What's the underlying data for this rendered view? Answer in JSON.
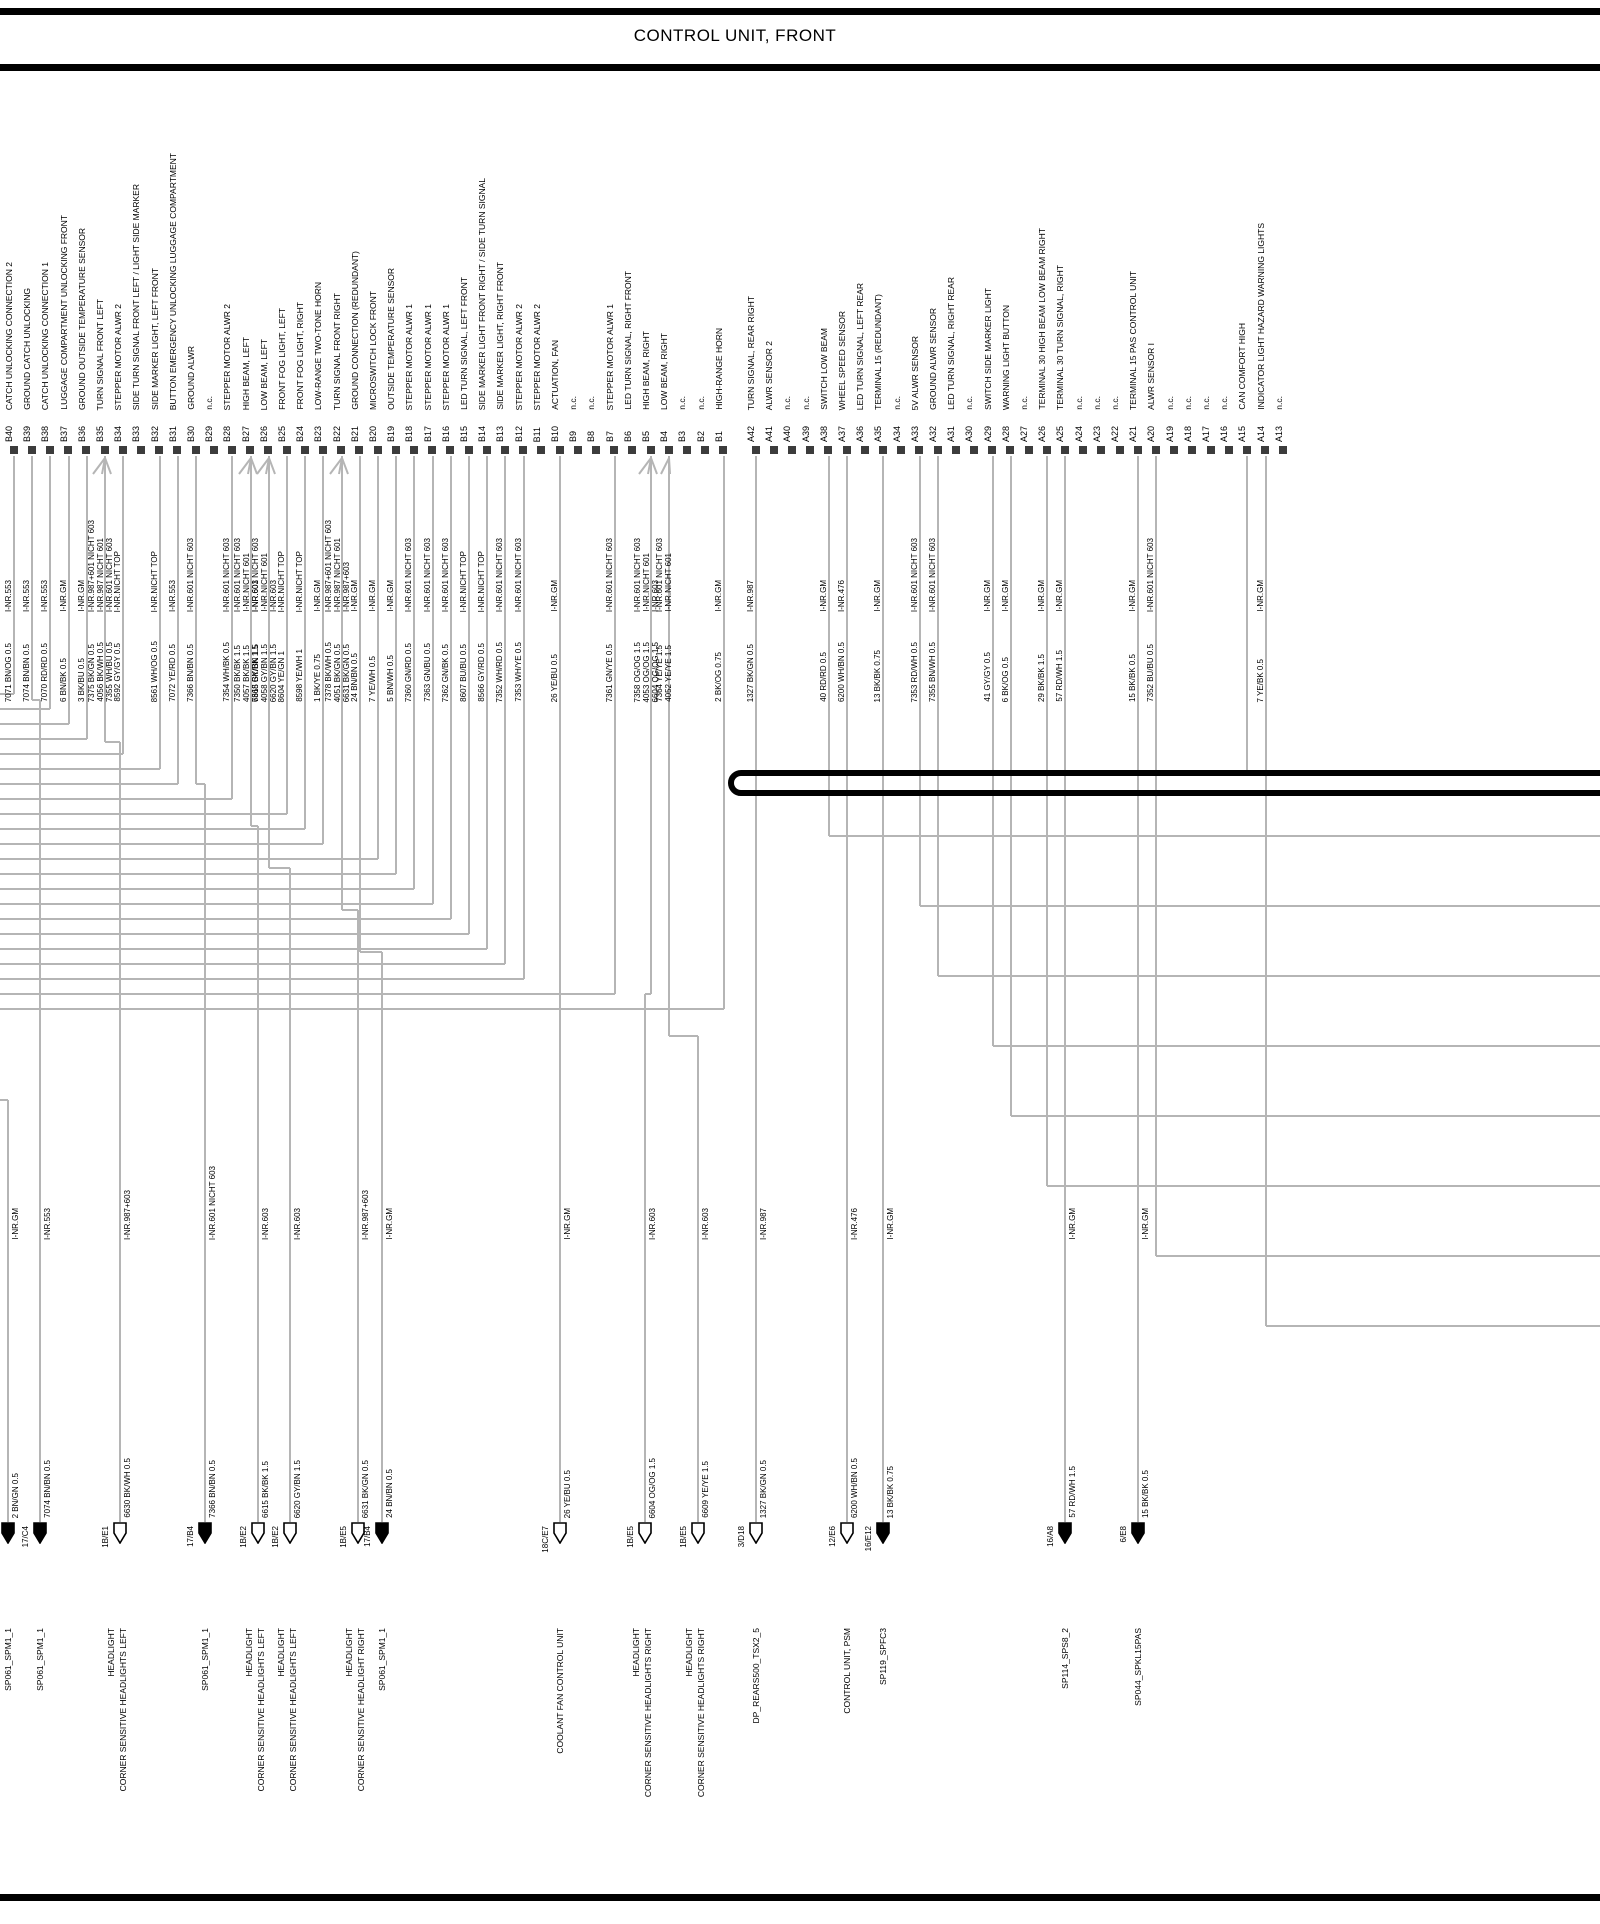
{
  "title": "CONTROL UNIT, FRONT",
  "colors": {
    "wire_gray": "#b5b5b5",
    "bar_black": "#000000",
    "pin_contact": "#3c3c3c"
  },
  "pins": [
    {
      "id": "B40",
      "fn": "CATCH UNLOCKING CONNECTION 2",
      "wires": [
        {
          "code": "7071 BN/OG 0.5",
          "inr": "I-NR.553"
        }
      ],
      "dest": "left"
    },
    {
      "id": "B39",
      "fn": "GROUND CATCH UNLOCKING",
      "wires": [
        {
          "code": "7074 BN/BN 0.5",
          "inr": "I-NR.553"
        }
      ],
      "dest": "sp:1"
    },
    {
      "id": "B38",
      "fn": "CATCH UNLOCKING CONNECTION 1",
      "wires": [
        {
          "code": "7070 RD/RD 0.5",
          "inr": "I-NR.553"
        }
      ],
      "dest": "left"
    },
    {
      "id": "B37",
      "fn": "LUGGAGE COMPARTMENT UNLOCKING FRONT",
      "wires": [
        {
          "code": "6 BN/BK 0.5",
          "inr": "I-NR.GM"
        }
      ],
      "dest": "left"
    },
    {
      "id": "B36",
      "fn": "GROUND OUTSIDE TEMPERATURE SENSOR",
      "wires": [
        {
          "code": "3 BK/BU 0.5",
          "inr": "I-NR.GM"
        }
      ],
      "dest": "left"
    },
    {
      "id": "B35",
      "fn": "TURN SIGNAL FRONT LEFT",
      "wires": [
        {
          "code": "7375 BK/GN 0.5",
          "inr": "I-NR.987+601 NICHT 603"
        },
        {
          "code": "4056 BK/WH 0.5",
          "inr": "I-NR.987 NICHT 601"
        },
        {
          "code": "7355 WH/BU 0.5",
          "inr": "I-NR.601 NICHT 603"
        }
      ],
      "dest": "sp:2"
    },
    {
      "id": "B34",
      "fn": "STEPPER MOTOR  ALWR 2",
      "wires": [
        {
          "code": "8592 GY/GY 0.5",
          "inr": "I-NR.NICHT TOP"
        }
      ],
      "dest": "left"
    },
    {
      "id": "B33",
      "fn": "SIDE TURN SIGNAL FRONT LEFT / LIGHT SIDE MARKER",
      "wires": []
    },
    {
      "id": "B32",
      "fn": "SIDE MARKER LIGHT, LEFT FRONT",
      "wires": [
        {
          "code": "8561 WH/OG 0.5",
          "inr": "I-NR.NICHT TOP"
        }
      ],
      "dest": "left"
    },
    {
      "id": "B31",
      "fn": "BUTTON  EMERGENCY UNLOCKING  LUGGAGE COMPARTMENT",
      "wires": [
        {
          "code": "7072 YE/RD 0.5",
          "inr": "I-NR.553"
        }
      ],
      "dest": "left"
    },
    {
      "id": "B30",
      "fn": "GROUND  ALWR",
      "wires": [
        {
          "code": "7366 BN/BN 0.5",
          "inr": "I-NR.601 NICHT 603"
        }
      ],
      "dest": "sp:3"
    },
    {
      "id": "B29",
      "fn": "n.c.",
      "wires": []
    },
    {
      "id": "B28",
      "fn": "STEPPER MOTOR  ALWR 2",
      "wires": [
        {
          "code": "7354 WH/BK 0.5",
          "inr": "I-NR.601 NICHT 603"
        }
      ],
      "dest": "left"
    },
    {
      "id": "B27",
      "fn": "HIGH BEAM, LEFT",
      "wires": [
        {
          "code": "7350 BK/BK 1.5",
          "inr": "I-NR.601 NICHT 603"
        },
        {
          "code": "4057 BK/BK 1.5",
          "inr": "I-NR.NICHT 601"
        },
        {
          "code": "6615 BK/BK 1.5",
          "inr": "I-NR.603"
        }
      ],
      "dest": "sp:4"
    },
    {
      "id": "B26",
      "fn": "LOW BEAM, LEFT",
      "wires": [
        {
          "code": "7368 GY/BN 1.5",
          "inr": "I-NR.601 NICHT 603"
        },
        {
          "code": "4058 GY/BN 1.5",
          "inr": "I-NR.NICHT 601"
        },
        {
          "code": "6620 GY/BN 1.5",
          "inr": "I-NR.603"
        }
      ],
      "dest": "sp:5"
    },
    {
      "id": "B25",
      "fn": "FRONT FOG LIGHT, LEFT",
      "wires": [
        {
          "code": "8604 YE/GN 1",
          "inr": "I-NR.NICHT TOP"
        }
      ],
      "dest": "left"
    },
    {
      "id": "B24",
      "fn": "FRONT FOG LIGHT, RIGHT",
      "wires": [
        {
          "code": "8598 YE/WH 1",
          "inr": "I-NR.NICHT TOP"
        }
      ],
      "dest": "left"
    },
    {
      "id": "B23",
      "fn": "LOW-RANGE  TWO-TONE  HORN",
      "wires": [
        {
          "code": "1 BK/YE 0.75",
          "inr": "I-NR.GM"
        }
      ],
      "dest": "left"
    },
    {
      "id": "B22",
      "fn": "TURN SIGNAL  FRONT RIGHT",
      "wires": [
        {
          "code": "7378 BK/WH 0.5",
          "inr": "I-NR.987+601 NICHT 603"
        },
        {
          "code": "4051 BK/GN 0.5",
          "inr": "I-NR.987 NICHT 601"
        },
        {
          "code": "6631 BK/GN 0.5",
          "inr": "I-NR.987+603"
        }
      ],
      "dest": "sp:6"
    },
    {
      "id": "B21",
      "fn": "GROUND CONNECTION  (REDUNDANT)",
      "wires": [
        {
          "code": "24 BN/BN 0.5",
          "inr": "I-NR.GM"
        }
      ],
      "dest": "sp:7"
    },
    {
      "id": "B20",
      "fn": "MICROSWITCH    LOCK    FRONT",
      "wires": [
        {
          "code": "7 YE/WH 0.5",
          "inr": "I-NR.GM"
        }
      ],
      "dest": "left"
    },
    {
      "id": "B19",
      "fn": "OUTSIDE TEMPERATURE SENSOR",
      "wires": [
        {
          "code": "5 BN/WH 0.5",
          "inr": "I-NR.GM"
        }
      ],
      "dest": "left"
    },
    {
      "id": "B18",
      "fn": "STEPPER MOTOR   ALWR 1",
      "wires": [
        {
          "code": "7360 GN/RD 0.5",
          "inr": "I-NR.601 NICHT 603"
        }
      ],
      "dest": "left"
    },
    {
      "id": "B17",
      "fn": "STEPPER MOTOR   ALWR 1",
      "wires": [
        {
          "code": "7363 GN/BU 0.5",
          "inr": "I-NR.601 NICHT 603"
        }
      ],
      "dest": "left"
    },
    {
      "id": "B16",
      "fn": "STEPPER MOTOR  ALWR 1",
      "wires": [
        {
          "code": "7362 GN/BK 0.5",
          "inr": "I-NR.601 NICHT 603"
        }
      ],
      "dest": "left"
    },
    {
      "id": "B15",
      "fn": "LED TURN SIGNAL, LEFT   FRONT",
      "wires": [
        {
          "code": "8607 BU/BU 0.5",
          "inr": "I-NR.NICHT TOP"
        }
      ],
      "dest": "left"
    },
    {
      "id": "B14",
      "fn": "SIDE MARKER LIGHT  FRONT RIGHT / SIDE TURN SIGNAL",
      "wires": [
        {
          "code": "8566 GY/RD 0.5",
          "inr": "I-NR.NICHT TOP"
        }
      ],
      "dest": "left"
    },
    {
      "id": "B13",
      "fn": "SIDE MARKER LIGHT, RIGHT FRONT",
      "wires": [
        {
          "code": "7352 WH/RD 0.5",
          "inr": "I-NR.601 NICHT 603"
        }
      ],
      "dest": "left"
    },
    {
      "id": "B12",
      "fn": "STEPPER MOTOR  ALWR 2",
      "wires": [
        {
          "code": "7353 WH/YE 0.5",
          "inr": "I-NR.601 NICHT 603"
        }
      ],
      "dest": "left"
    },
    {
      "id": "B11",
      "fn": "STEPPER MOTOR  ALWR 2",
      "wires": []
    },
    {
      "id": "B10",
      "fn": "ACTUATION, FAN",
      "wires": [
        {
          "code": "26 YE/BU 0.5",
          "inr": "I-NR.GM"
        }
      ],
      "dest": "sp:8"
    },
    {
      "id": "B9",
      "fn": "n.c.",
      "wires": []
    },
    {
      "id": "B8",
      "fn": "n.c.",
      "wires": []
    },
    {
      "id": "B7",
      "fn": "STEPPER MOTOR  ALWR 1",
      "wires": [
        {
          "code": "7361 GN/YE 0.5",
          "inr": "I-NR.601 NICHT 603"
        }
      ],
      "dest": "left"
    },
    {
      "id": "B6",
      "fn": "LED TURN SIGNAL, RIGHT  FRONT",
      "wires": []
    },
    {
      "id": "B5",
      "fn": "HIGH BEAM, RIGHT",
      "wires": [
        {
          "code": "7358 OG/OG 1.5",
          "inr": "I-NR.601 NICHT 603"
        },
        {
          "code": "4053 OG/OG 1.5",
          "inr": "I-NR.NICHT 601"
        },
        {
          "code": "6604 OG/OG 1.5",
          "inr": "I-NR.603"
        }
      ],
      "dest": "sp:9"
    },
    {
      "id": "B4",
      "fn": "LOW BEAM, RIGHT",
      "wires": [
        {
          "code": "7364 YE/YE 1.5",
          "inr": "I-NR.601 NICHT 603"
        },
        {
          "code": "4052 YE/YE 1.5",
          "inr": "I-NR.NICHT 601"
        }
      ],
      "dest": "sp:10"
    },
    {
      "id": "B3",
      "fn": "n.c.",
      "wires": []
    },
    {
      "id": "B2",
      "fn": "n.c.",
      "wires": []
    },
    {
      "id": "B1",
      "fn": "HIGH-RANGE HORN",
      "wires": [
        {
          "code": "2 BK/OG 0.75",
          "inr": "I-NR.GM"
        }
      ],
      "dest": "left"
    },
    {
      "id": "A42",
      "fn": "TURN SIGNAL, REAR RIGHT",
      "wires": [
        {
          "code": "1327 BK/GN 0.5",
          "inr": "I-NR.987"
        }
      ],
      "dest": "sp:11"
    },
    {
      "id": "A41",
      "fn": "ALWR SENSOR 2",
      "wires": []
    },
    {
      "id": "A40",
      "fn": "n.c.",
      "wires": []
    },
    {
      "id": "A39",
      "fn": "n.c.",
      "wires": []
    },
    {
      "id": "A38",
      "fn": "SWITCH LOW BEAM",
      "wires": [
        {
          "code": "40 RD/RD 0.5",
          "inr": "I-NR.GM"
        }
      ],
      "dest": "right"
    },
    {
      "id": "A37",
      "fn": "WHEEL SPEED SENSOR",
      "wires": [
        {
          "code": "6200 WH/BN 0.5",
          "inr": "I-NR.476"
        }
      ],
      "dest": "sp:12"
    },
    {
      "id": "A36",
      "fn": "LED TURN SIGNAL, LEFT REAR",
      "wires": []
    },
    {
      "id": "A35",
      "fn": "TERMINAL 15 (REDUNDANT)",
      "wires": [
        {
          "code": "13 BK/BK 0.75",
          "inr": "I-NR.GM"
        }
      ],
      "dest": "sp:13"
    },
    {
      "id": "A34",
      "fn": "n.c.",
      "wires": []
    },
    {
      "id": "A33",
      "fn": "5V   ALWR SENSOR",
      "wires": [
        {
          "code": "7353 RD/WH 0.5",
          "inr": "I-NR.601 NICHT 603"
        }
      ],
      "dest": "right"
    },
    {
      "id": "A32",
      "fn": "GROUND ALWR SENSOR",
      "wires": [
        {
          "code": "7355 BN/WH 0.5",
          "inr": "I-NR.601 NICHT 603"
        }
      ],
      "dest": "right"
    },
    {
      "id": "A31",
      "fn": "LED TURN SIGNAL, RIGHT REAR",
      "wires": []
    },
    {
      "id": "A30",
      "fn": "n.c.",
      "wires": []
    },
    {
      "id": "A29",
      "fn": "SWITCH  SIDE MARKER  LIGHT",
      "wires": [
        {
          "code": "41 GY/GY 0.5",
          "inr": "I-NR.GM"
        }
      ],
      "dest": "right"
    },
    {
      "id": "A28",
      "fn": "WARNING LIGHT BUTTON",
      "wires": [
        {
          "code": "6 BK/OG 0.5",
          "inr": "I-NR.GM"
        }
      ],
      "dest": "right"
    },
    {
      "id": "A27",
      "fn": "n.c.",
      "wires": []
    },
    {
      "id": "A26",
      "fn": "TERMINAL 30 HIGH BEAM  LOW BEAM  RIGHT",
      "wires": [
        {
          "code": "29 BK/BK 1.5",
          "inr": "I-NR.GM"
        }
      ],
      "dest": "right"
    },
    {
      "id": "A25",
      "fn": "TERMINAL 30   TURN SIGNAL, RIGHT",
      "wires": [
        {
          "code": "57 RD/WH 1.5",
          "inr": "I-NR.GM"
        }
      ],
      "dest": "sp:14"
    },
    {
      "id": "A24",
      "fn": "n.c.",
      "wires": []
    },
    {
      "id": "A23",
      "fn": "n.c.",
      "wires": []
    },
    {
      "id": "A22",
      "fn": "n.c.",
      "wires": []
    },
    {
      "id": "A21",
      "fn": "TERMINAL 15   PAS CONTROL UNIT",
      "wires": [
        {
          "code": "15 BK/BK 0.5",
          "inr": "I-NR.GM"
        }
      ],
      "dest": "sp:15"
    },
    {
      "id": "A20",
      "fn": "ALWR SENSOR    I",
      "wires": [
        {
          "code": "7352 BU/BU 0.5",
          "inr": "I-NR.601 NICHT 603"
        }
      ],
      "dest": "right"
    },
    {
      "id": "A19",
      "fn": "n.c.",
      "wires": []
    },
    {
      "id": "A18",
      "fn": "n.c.",
      "wires": []
    },
    {
      "id": "A17",
      "fn": "n.c.",
      "wires": []
    },
    {
      "id": "A16",
      "fn": "n.c.",
      "wires": []
    },
    {
      "id": "A15",
      "fn": "CAN COMFORT HIGH",
      "wires": [],
      "dest": "bus"
    },
    {
      "id": "A14",
      "fn": "INDICATOR LIGHT HAZARD WARNING LIGHTS",
      "wires": [
        {
          "code": "7 YE/BK 0.5",
          "inr": "I-NR.GM"
        }
      ],
      "dest": "right"
    },
    {
      "id": "A13",
      "fn": "n.c.",
      "wires": []
    }
  ],
  "connectors": [
    {
      "name": "SP061_SPM1_1",
      "ref": "17/D4",
      "code": "2 BN/GN 0.5",
      "inr": "I-NR.GM",
      "style": "filled"
    },
    {
      "name": "SP061_SPM1_1",
      "ref": "17/C4",
      "code": "7074 BN/BN 0.5",
      "inr": "I-NR.553",
      "style": "filled"
    },
    {
      "name": "HEADLIGHT",
      "name2": "CORNER SENSITIVE HEADLIGHTS LEFT",
      "ref": "1B/E1",
      "code": "6630 BK/WH 0.5",
      "inr": "I-NR.987+603",
      "style": "outline"
    },
    {
      "name": "SP061_SPM1_1",
      "ref": "17/B4",
      "code": "7366 BN/BN 0.5",
      "inr": "I-NR.601 NICHT 603",
      "style": "filled"
    },
    {
      "name": "HEADLIGHT",
      "name2": "CORNER SENSITIVE HEADLIGHTS  LEFT",
      "ref": "1B/E2",
      "code": "6615 BK/BK 1.5",
      "inr": "I-NR.603",
      "style": "outline"
    },
    {
      "name": "HEADLIGHT",
      "name2": "CORNER SENSITIVE HEADLIGHTS  LEFT",
      "ref": "1B/E2",
      "code": "6620 GY/BN 1.5",
      "inr": "I-NR.603",
      "style": "outline"
    },
    {
      "name": "HEADLIGHT",
      "name2": "CORNER SENSITIVE HEADLIGHT RIGHT",
      "ref": "1B/E5",
      "code": "6631 BK/GN 0.5",
      "inr": "I-NR.987+603",
      "style": "outline"
    },
    {
      "name": "SP061_SPM1_1",
      "ref": "17/B4",
      "code": "24 BN/BN 0.5",
      "inr": "I-NR.GM",
      "style": "filled"
    },
    {
      "name": "COOLANT FAN CONTROL UNIT",
      "ref": "18C/E7",
      "code": "26 YE/BU 0.5",
      "inr": "I-NR.GM",
      "style": "outline"
    },
    {
      "name": "HEADLIGHT",
      "name2": "CORNER SENSITIVE HEADLIGHTS RIGHT",
      "ref": "1B/E5",
      "code": "6604 OG/OG 1.5",
      "inr": "I-NR.603",
      "style": "outline"
    },
    {
      "name": "HEADLIGHT",
      "name2": "CORNER SENSITIVE HEADLIGHTS  RIGHT",
      "ref": "1B/E5",
      "code": "6609 YE/YE 1.5",
      "inr": "I-NR.603",
      "style": "outline"
    },
    {
      "name": "DP_REARS500_TSX2_5",
      "ref": "3/D18",
      "code": "1327 BK/GN 0.5",
      "inr": "I-NR.987",
      "style": "outline"
    },
    {
      "name": "CONTROL UNIT, PSM",
      "ref": "12/E6",
      "code": "6200 WH/BN 0.5",
      "inr": "I-NR.476",
      "style": "outline"
    },
    {
      "name": "SP119_SPFC3",
      "ref": "16/E12",
      "code": "13 BK/BK 0.75",
      "inr": "I-NR.GM",
      "style": "filled"
    },
    {
      "name": "SP114_SPS8_2",
      "ref": "16/A8",
      "code": "57 RD/WH 1.5",
      "inr": "I-NR.GM",
      "style": "filled"
    },
    {
      "name": "SP044_SPKL15PAS",
      "ref": "6/E8",
      "code": "15 BK/BK 0.5",
      "inr": "I-NR.GM",
      "style": "filled"
    }
  ]
}
